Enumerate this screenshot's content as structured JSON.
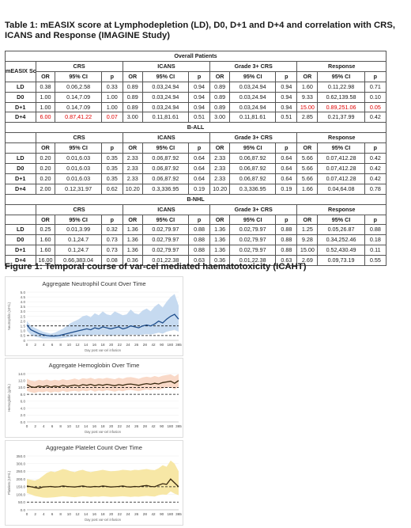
{
  "table_title": "Table 1: mEASIX score at Lymphodepletion (LD), D0, D+1 and D+4 and correlation with CRS, ICANS and Response (IMAGINE Study)",
  "row_header": "mEASIX Score",
  "groups": [
    "CRS",
    "ICANS",
    "Grade 3+ CRS",
    "Response"
  ],
  "col_headers": [
    "OR",
    "95% CI",
    "p"
  ],
  "highlight_color": "#e00000",
  "sections": [
    {
      "label": "Overall Patients",
      "rows": [
        {
          "label": "LD",
          "cells": [
            "0.38",
            "0.06,2.58",
            "0.33",
            "0.89",
            "0.03,24.94",
            "0.94",
            "0.89",
            "0.03,24.94",
            "0.94",
            "1.60",
            "0.11,22.98",
            "0.71"
          ]
        },
        {
          "label": "D0",
          "cells": [
            "1.00",
            "0.14,7.09",
            "1.00",
            "0.89",
            "0.03,24.94",
            "0.94",
            "0.89",
            "0.03,24.94",
            "0.94",
            "9.33",
            "0.62,139.58",
            "0.10"
          ]
        },
        {
          "label": "D+1",
          "cells": [
            "1.00",
            "0.14,7.09",
            "1.00",
            "0.89",
            "0.03,24.94",
            "0.94",
            "0.89",
            "0.03,24.94",
            "0.94",
            "15.00",
            "0.89,251.06",
            "0.05"
          ],
          "red": [
            9,
            10,
            11
          ]
        },
        {
          "label": "D+4",
          "cells": [
            "6.00",
            "0.87,41.22",
            "0.07",
            "3.00",
            "0.11,81.61",
            "0.51",
            "3.00",
            "0.11,81.61",
            "0.51",
            "2.85",
            "0.21,37.99",
            "0.42"
          ],
          "red": [
            0,
            1,
            2
          ]
        }
      ]
    },
    {
      "label": "B-ALL",
      "rows": [
        {
          "label": "LD",
          "cells": [
            "0.20",
            "0.01,6.03",
            "0.35",
            "2.33",
            "0.06,87.92",
            "0.64",
            "2.33",
            "0.06,87.92",
            "0.64",
            "5.66",
            "0.07,412.28",
            "0.42"
          ]
        },
        {
          "label": "D0",
          "cells": [
            "0.20",
            "0.01,6.03",
            "0.35",
            "2.33",
            "0.06,87.92",
            "0.64",
            "2.33",
            "0.06,87.92",
            "0.64",
            "5.66",
            "0.07,412.28",
            "0.42"
          ]
        },
        {
          "label": "D+1",
          "cells": [
            "0.20",
            "0.01,6.03",
            "0.35",
            "2.33",
            "0.06,87.92",
            "0.64",
            "2.33",
            "0.06,87.92",
            "0.64",
            "5.66",
            "0.07,412.28",
            "0.42"
          ]
        },
        {
          "label": "D+4",
          "cells": [
            "2.00",
            "0.12,31.97",
            "0.62",
            "10.20",
            "0.3,336.95",
            "0.19",
            "10.20",
            "0.3,336.95",
            "0.19",
            "1.66",
            "0.04,64.08",
            "0.78"
          ]
        }
      ]
    },
    {
      "label": "B-NHL",
      "rows": [
        {
          "label": "LD",
          "cells": [
            "0.25",
            "0.01,3.99",
            "0.32",
            "1.36",
            "0.02,79.97",
            "0.88",
            "1.36",
            "0.02,79.97",
            "0.88",
            "1.25",
            "0.05,26.87",
            "0.88"
          ]
        },
        {
          "label": "D0",
          "cells": [
            "1.60",
            "0.1,24.7",
            "0.73",
            "1.36",
            "0.02,79.97",
            "0.88",
            "1.36",
            "0.02,79.97",
            "0.88",
            "9.28",
            "0.34,252.46",
            "0.18"
          ]
        },
        {
          "label": "D+1",
          "cells": [
            "1.60",
            "0.1,24.7",
            "0.73",
            "1.36",
            "0.02,79.97",
            "0.88",
            "1.36",
            "0.02,79.97",
            "0.88",
            "15.00",
            "0.52,430.49",
            "0.11"
          ]
        },
        {
          "label": "D+4",
          "cells": [
            "16.00",
            "0.66,383.04",
            "0.08",
            "0.36",
            "0.01,22.38",
            "0.63",
            "0.36",
            "0.01,22.38",
            "0.63",
            "2.69",
            "0.09,73.19",
            "0.55"
          ]
        }
      ]
    }
  ],
  "figure_title": "Figure 1: Temporal course of var-cel mediated haematotoxicity (ICAHT)",
  "chart_data": [
    {
      "type": "line",
      "title": "Aggregate Neutrophil Count Over Time",
      "xlabel": "Day post var-cel infusion",
      "ylabel": "Neutrophils (10⁹/L)",
      "ylim": [
        0,
        5
      ],
      "yticks": [
        "0",
        "0.5",
        "1.0",
        "1.5",
        "2.0",
        "2.5",
        "3.0",
        "3.5",
        "4.0",
        "4.5",
        "5.0"
      ],
      "x_tick_labels": [
        "0",
        "2",
        "4",
        "6",
        "8",
        "10",
        "12",
        "14",
        "16",
        "18",
        "20",
        "22",
        "24",
        "26",
        "28",
        "42",
        "90",
        "180",
        "365"
      ],
      "reference_lines": [
        0.5,
        1.5
      ],
      "line_color": "#1f4e8c",
      "band_color": "#c6daf0",
      "median": [
        1.6,
        1.1,
        0.9,
        0.7,
        0.6,
        0.5,
        0.45,
        0.45,
        0.5,
        0.6,
        0.7,
        0.8,
        0.9,
        1.0,
        1.1,
        1.2,
        1.1,
        1.3,
        1.2,
        1.4,
        1.3,
        1.2,
        1.3,
        1.4,
        1.2,
        1.3,
        1.5,
        1.4,
        1.3,
        1.5,
        1.6,
        1.5,
        1.7,
        2.0,
        1.8,
        2.2,
        2.5,
        2.7,
        2.2
      ],
      "upper": [
        2.0,
        1.5,
        1.3,
        1.1,
        0.9,
        0.8,
        0.7,
        0.8,
        1.0,
        1.2,
        1.5,
        1.8,
        2.0,
        2.2,
        2.5,
        2.6,
        2.4,
        2.8,
        2.6,
        3.0,
        2.7,
        2.6,
        3.0,
        2.8,
        2.6,
        2.7,
        3.2,
        2.8,
        2.7,
        3.1,
        3.3,
        3.0,
        3.5,
        3.8,
        3.4,
        4.0,
        4.5,
        4.8,
        3.6
      ],
      "lower": [
        1.0,
        0.6,
        0.4,
        0.3,
        0.2,
        0.2,
        0.2,
        0.2,
        0.2,
        0.25,
        0.3,
        0.35,
        0.4,
        0.45,
        0.5,
        0.55,
        0.5,
        0.6,
        0.55,
        0.6,
        0.55,
        0.5,
        0.55,
        0.6,
        0.5,
        0.55,
        0.6,
        0.6,
        0.55,
        0.6,
        0.65,
        0.6,
        0.7,
        0.8,
        0.7,
        0.9,
        1.0,
        1.1,
        0.9
      ]
    },
    {
      "type": "line",
      "title": "Aggregate Hemoglobin Over Time",
      "xlabel": "Day post var-cel infusion",
      "ylabel": "Hemoglobin (g/dL)",
      "ylim": [
        0,
        14
      ],
      "yticks": [
        "0.0",
        "2.0",
        "4.0",
        "6.0",
        "8.0",
        "10.0",
        "12.0",
        "14.0"
      ],
      "x_tick_labels": [
        "0",
        "2",
        "4",
        "6",
        "8",
        "10",
        "12",
        "14",
        "16",
        "18",
        "20",
        "22",
        "24",
        "26",
        "28",
        "42",
        "90",
        "180",
        "365"
      ],
      "reference_lines": [
        8,
        10
      ],
      "line_color": "#3a2a10",
      "band_color": "#f9d9c8",
      "median": [
        10.8,
        10.2,
        10.0,
        10.4,
        10.2,
        10.5,
        10.1,
        10.4,
        10.2,
        10.6,
        10.3,
        10.5,
        10.7,
        10.4,
        10.8,
        10.6,
        10.9,
        10.5,
        10.8,
        10.6,
        10.9,
        10.7,
        10.5,
        10.8,
        10.6,
        10.9,
        11.0,
        10.8,
        10.6,
        10.9,
        11.1,
        10.9,
        11.2,
        11.0,
        11.4,
        11.6,
        11.8,
        11.2,
        12.0
      ],
      "upper": [
        12.5,
        12.0,
        11.8,
        12.2,
        12.0,
        12.3,
        11.9,
        12.2,
        12.0,
        12.4,
        12.1,
        12.3,
        12.6,
        12.2,
        12.7,
        12.5,
        12.8,
        12.4,
        12.7,
        12.5,
        12.8,
        12.6,
        12.4,
        12.8,
        12.5,
        12.9,
        13.0,
        12.8,
        12.5,
        12.9,
        13.1,
        12.9,
        13.3,
        13.0,
        13.4,
        13.6,
        13.8,
        13.2,
        13.9
      ],
      "lower": [
        9.0,
        8.6,
        8.4,
        8.8,
        8.6,
        8.9,
        8.5,
        8.8,
        8.6,
        9.0,
        8.7,
        8.9,
        9.0,
        8.8,
        9.1,
        8.9,
        9.2,
        8.8,
        9.1,
        8.9,
        9.2,
        9.0,
        8.8,
        9.1,
        8.9,
        9.2,
        9.3,
        9.1,
        8.9,
        9.2,
        9.4,
        9.2,
        9.5,
        9.3,
        9.7,
        9.9,
        10.1,
        9.4,
        10.2
      ]
    },
    {
      "type": "line",
      "title": "Aggregate Platelet Count Over Time",
      "xlabel": "Day post var-cel infusion",
      "ylabel": "Platelets (10⁹/L)",
      "ylim": [
        0,
        350
      ],
      "yticks": [
        "0.0",
        "50.0",
        "100.0",
        "150.0",
        "200.0",
        "250.0",
        "300.0",
        "350.0"
      ],
      "x_tick_labels": [
        "0",
        "2",
        "4",
        "6",
        "8",
        "10",
        "12",
        "14",
        "16",
        "18",
        "20",
        "22",
        "24",
        "26",
        "28",
        "42",
        "90",
        "180",
        "365"
      ],
      "reference_lines": [
        50,
        150
      ],
      "line_color": "#3a2a10",
      "band_color": "#f7e7a6",
      "median": [
        155,
        150,
        145,
        140,
        148,
        150,
        152,
        148,
        150,
        155,
        152,
        150,
        148,
        152,
        155,
        150,
        148,
        152,
        150,
        155,
        152,
        148,
        150,
        152,
        155,
        150,
        148,
        152,
        150,
        155,
        158,
        152,
        150,
        160,
        170,
        165,
        200,
        175,
        150
      ],
      "upper": [
        200,
        195,
        190,
        200,
        220,
        240,
        250,
        245,
        255,
        265,
        260,
        250,
        245,
        255,
        260,
        250,
        245,
        250,
        255,
        260,
        255,
        250,
        252,
        255,
        260,
        258,
        255,
        260,
        258,
        262,
        265,
        260,
        258,
        270,
        290,
        280,
        320,
        300,
        250
      ],
      "lower": [
        110,
        100,
        90,
        85,
        80,
        78,
        80,
        82,
        85,
        88,
        86,
        84,
        82,
        85,
        88,
        86,
        84,
        86,
        85,
        88,
        86,
        84,
        85,
        86,
        88,
        86,
        84,
        86,
        85,
        88,
        90,
        88,
        86,
        95,
        100,
        98,
        120,
        105,
        95
      ]
    }
  ]
}
